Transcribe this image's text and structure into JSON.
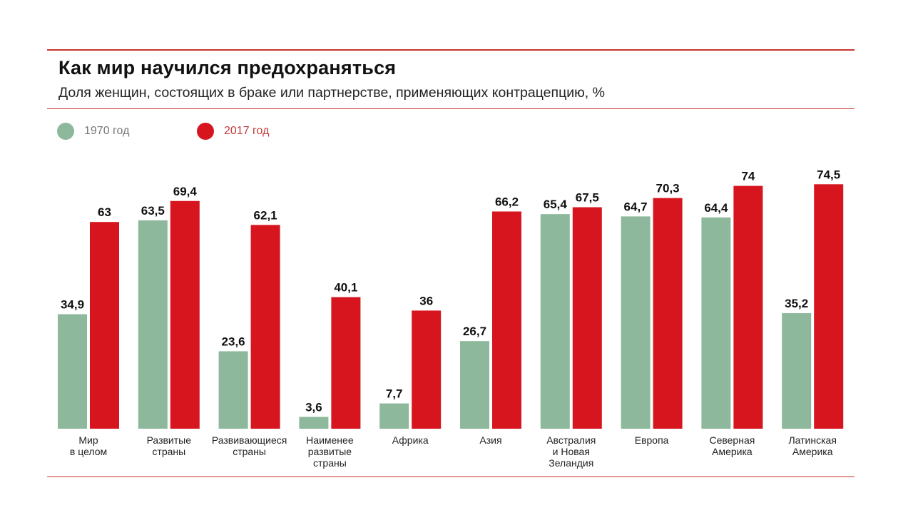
{
  "header": {
    "title": "Как мир научился предохраняться",
    "subtitle": "Доля женщин, состоящих в браке или партнерстве, применяющих контрацепцию, %"
  },
  "colors": {
    "accent": "#c9342f",
    "series_1970": "#8db89c",
    "series_2017": "#d7151f",
    "label_text": "#111111",
    "category_text": "#222222"
  },
  "legend": [
    {
      "label": "1970 год",
      "color": "#8db89c",
      "text_color": "#777777"
    },
    {
      "label": "2017 год",
      "color": "#d7151f",
      "text_color": "#c23a3a"
    }
  ],
  "chart_data": {
    "type": "bar",
    "title": "Как мир научился предохраняться",
    "subtitle": "Доля женщин, состоящих в браке или партнерстве, применяющих контрацепцию, %",
    "categories": [
      [
        "Мир",
        "в целом"
      ],
      [
        "Развитые",
        "страны"
      ],
      [
        "Развивающиеся",
        "страны"
      ],
      [
        "Наименее",
        "развитые",
        "страны"
      ],
      [
        "Африка"
      ],
      [
        "Азия"
      ],
      [
        "Австралия",
        "и Новая",
        "Зеландия"
      ],
      [
        "Европа"
      ],
      [
        "Северная",
        "Америка"
      ],
      [
        "Латинская",
        "Америка"
      ]
    ],
    "series": [
      {
        "name": "1970 год",
        "color": "#8db89c",
        "values": [
          34.9,
          63.5,
          23.6,
          3.6,
          7.7,
          26.7,
          65.4,
          64.7,
          64.4,
          35.2
        ],
        "labels": [
          "34,9",
          "63,5",
          "23,6",
          "3,6",
          "7,7",
          "26,7",
          "65,4",
          "64,7",
          "64,4",
          "35,2"
        ]
      },
      {
        "name": "2017 год",
        "color": "#d7151f",
        "values": [
          63,
          69.4,
          62.1,
          40.1,
          36,
          66.2,
          67.5,
          70.3,
          74,
          74.5
        ],
        "labels": [
          "63",
          "69,4",
          "62,1",
          "40,1",
          "36",
          "66,2",
          "67,5",
          "70,3",
          "74",
          "74,5"
        ]
      }
    ],
    "ylim": [
      0,
      100
    ],
    "grid": false,
    "legend_position": "top-left"
  },
  "watermark": "🜋 · · ·"
}
